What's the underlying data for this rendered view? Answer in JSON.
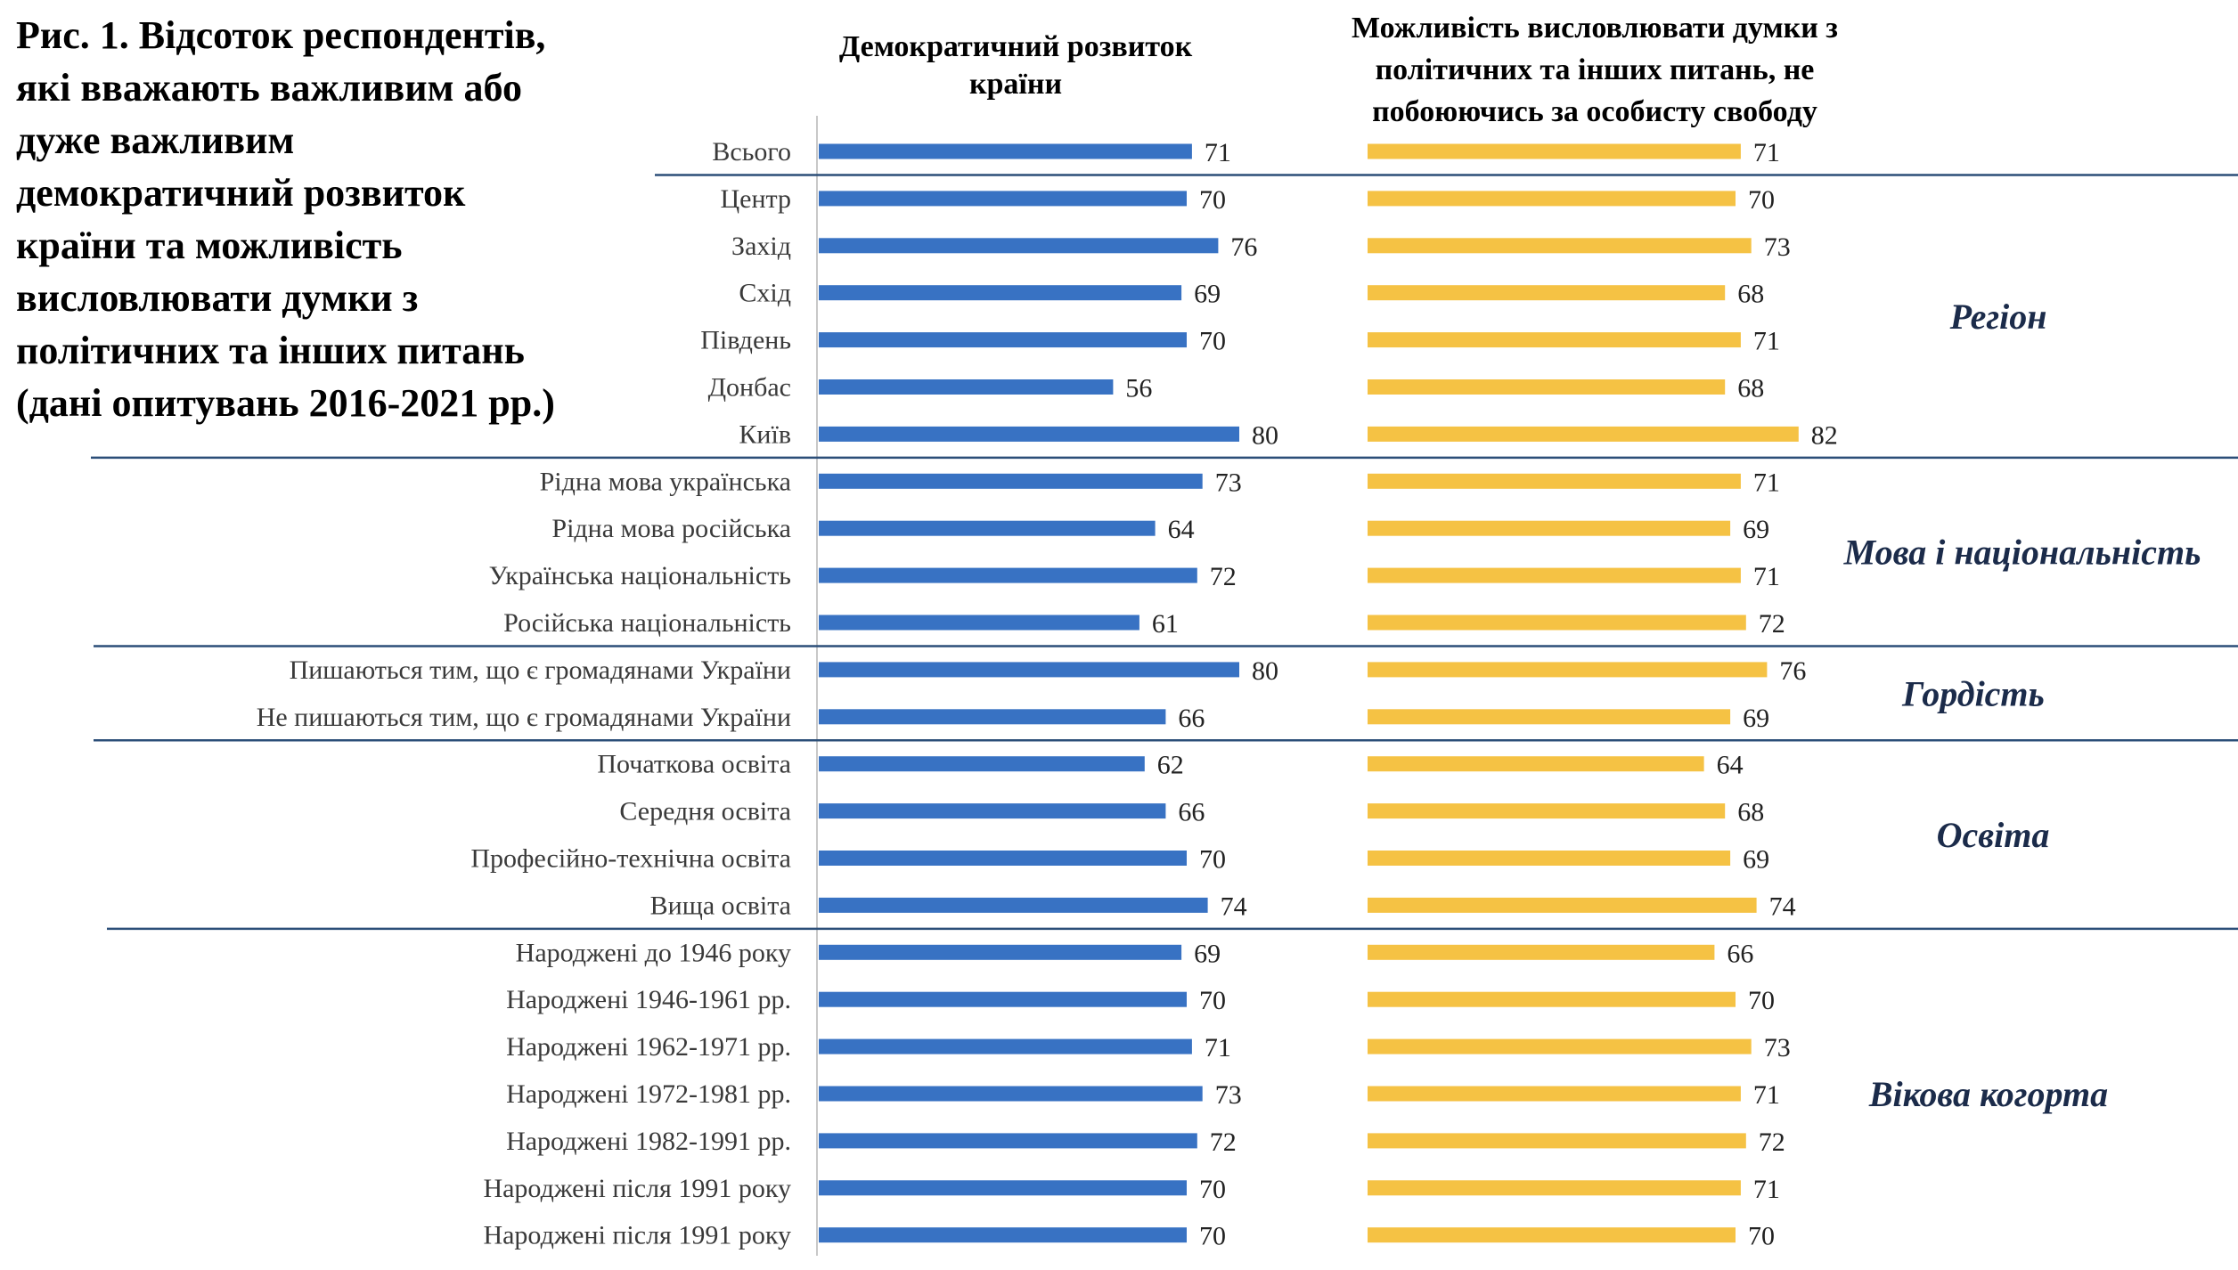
{
  "figure": {
    "title_lines": [
      "Рис. 1. Відсоток респондентів,",
      "які вважають важливим або",
      "дуже важливим",
      "демократичний розвиток",
      "країни та можливість",
      "висловлювати думки з",
      "політичних та інших питань",
      "(дані опитувань 2016-2021 рр.)"
    ]
  },
  "colors": {
    "series_left": "#3872C3",
    "series_right": "#F5C244",
    "divider": "#2B4E78",
    "axis": "#C8C8C8",
    "group_label": "#1B2B4A"
  },
  "chart_data": {
    "type": "bar",
    "orientation": "horizontal",
    "unit": "%",
    "xlim": [
      0,
      100
    ],
    "grid": false,
    "categories": [
      "Всього",
      "Центр",
      "Захід",
      "Схід",
      "Південь",
      "Донбас",
      "Київ",
      "Рідна мова українська",
      "Рідна мова російська",
      "Українська національність",
      "Російська національність",
      "Пишаються тим, що є громадянами України",
      "Не пишаються тим, що є громадянами України",
      "Початкова освіта",
      "Середня освіта",
      "Професійно-технічна освіта",
      "Вища освіта",
      "Народжені до 1946 року",
      "Народжені 1946-1961 рр.",
      "Народжені 1962-1971 рр.",
      "Народжені 1972-1981 рр.",
      "Народжені 1982-1991 рр.",
      "Народжені після 1991 року",
      "Народжені після 1991 року"
    ],
    "series": [
      {
        "name": "Демократичний розвиток країни",
        "title_lines": [
          "Демократичний розвиток",
          "країни"
        ],
        "values": [
          71,
          70,
          76,
          69,
          70,
          56,
          80,
          73,
          64,
          72,
          61,
          80,
          66,
          62,
          66,
          70,
          74,
          69,
          70,
          71,
          73,
          72,
          70,
          70
        ]
      },
      {
        "name": "Можливість висловлювати думки з політичних та інших питань, не побоюючись за особисту свободу",
        "title_lines": [
          "Можливість висловлювати думки з",
          "політичних та інших питань, не",
          "побоюючись за особисту свободу"
        ],
        "values": [
          71,
          70,
          73,
          68,
          71,
          68,
          82,
          71,
          69,
          71,
          72,
          76,
          69,
          64,
          68,
          69,
          74,
          66,
          70,
          73,
          71,
          72,
          71,
          70
        ]
      }
    ],
    "groups": [
      {
        "name": "Регіон",
        "start": 1,
        "end": 6
      },
      {
        "name": "Мова і національність",
        "start": 7,
        "end": 10
      },
      {
        "name": "Гордість",
        "start": 11,
        "end": 12
      },
      {
        "name": "Освіта",
        "start": 13,
        "end": 16
      },
      {
        "name": "Вікова когорта",
        "start": 17,
        "end": 23
      }
    ]
  }
}
